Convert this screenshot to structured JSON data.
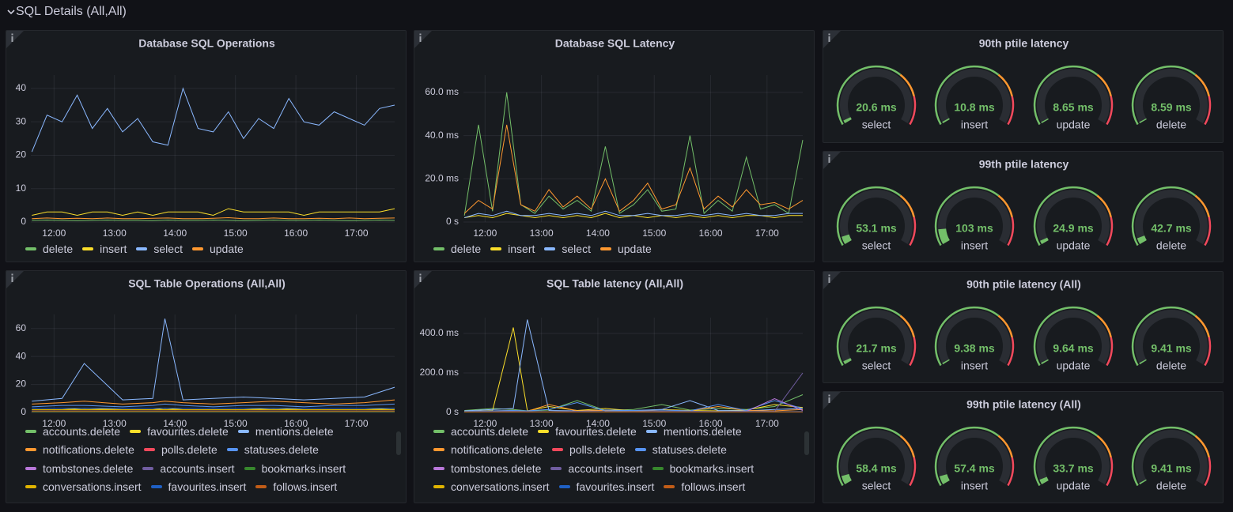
{
  "row": {
    "title": "SQL Details (All,All)"
  },
  "panels": [
    {
      "type": "line",
      "title": "Database SQL Operations",
      "x": [
        "11:38",
        "11:53",
        "12:08",
        "12:23",
        "12:38",
        "12:53",
        "13:08",
        "13:23",
        "13:38",
        "13:53",
        "14:08",
        "14:23",
        "14:38",
        "14:53",
        "15:08",
        "15:23",
        "15:38",
        "15:53",
        "16:08",
        "16:23",
        "16:38",
        "16:53",
        "17:08",
        "17:23",
        "17:38"
      ],
      "xlim": [
        "11:37",
        "17:38"
      ],
      "xticks": [
        "12:00",
        "13:00",
        "14:00",
        "15:00",
        "16:00",
        "17:00"
      ],
      "ylim": [
        0,
        44
      ],
      "yticks": [
        0,
        10,
        20,
        30,
        40
      ],
      "grid": true,
      "series": [
        {
          "name": "delete",
          "color": "#73bf69",
          "values": [
            0.5,
            0.6,
            0.5,
            0.4,
            0.5,
            0.6,
            0.5,
            0.5,
            0.4,
            0.6,
            0.5,
            0.5,
            0.6,
            0.5,
            0.4,
            0.5,
            0.6,
            0.5,
            0.5,
            0.6,
            0.5,
            0.4,
            0.5,
            0.6,
            0.5
          ]
        },
        {
          "name": "insert",
          "color": "#fade2a",
          "values": [
            2,
            3,
            3,
            2,
            3,
            3,
            2,
            3,
            2,
            3,
            3,
            3,
            2,
            4,
            3,
            3,
            3,
            3,
            2,
            3,
            3,
            3,
            3,
            3,
            4
          ]
        },
        {
          "name": "select",
          "color": "#8ab8ff",
          "values": [
            21,
            32,
            30,
            38,
            28,
            34,
            27,
            31,
            24,
            23,
            40,
            28,
            27,
            33,
            25,
            31,
            28,
            37,
            30,
            29,
            33,
            31,
            29,
            34,
            35
          ]
        },
        {
          "name": "update",
          "color": "#ff9830",
          "values": [
            1,
            1.2,
            1,
            1.1,
            1,
            1.2,
            1,
            1,
            1.1,
            1.2,
            1,
            1,
            1.1,
            1.3,
            1,
            1,
            1.2,
            1,
            1,
            1.1,
            1,
            1.2,
            1,
            1.1,
            1.2
          ]
        }
      ]
    },
    {
      "type": "line",
      "title": "Database SQL Latency",
      "x": [
        "11:38",
        "11:53",
        "12:08",
        "12:23",
        "12:38",
        "12:53",
        "13:08",
        "13:23",
        "13:38",
        "13:53",
        "14:08",
        "14:23",
        "14:38",
        "14:53",
        "15:08",
        "15:23",
        "15:38",
        "15:53",
        "16:08",
        "16:23",
        "16:38",
        "16:53",
        "17:08",
        "17:23",
        "17:38"
      ],
      "xlim": [
        "11:37",
        "17:38"
      ],
      "xticks": [
        "12:00",
        "13:00",
        "14:00",
        "15:00",
        "16:00",
        "17:00"
      ],
      "ylim": [
        0,
        68
      ],
      "yticks": [
        {
          "value": 0,
          "label": "0 s"
        },
        {
          "value": 20,
          "label": "20.0 ms"
        },
        {
          "value": 40,
          "label": "40.0 ms"
        },
        {
          "value": 60,
          "label": "60.0 ms"
        }
      ],
      "grid": true,
      "series": [
        {
          "name": "delete",
          "color": "#73bf69",
          "values": [
            3,
            45,
            5,
            60,
            8,
            4,
            12,
            6,
            10,
            5,
            35,
            4,
            8,
            15,
            5,
            6,
            40,
            4,
            10,
            5,
            30,
            6,
            8,
            4,
            38
          ]
        },
        {
          "name": "insert",
          "color": "#fade2a",
          "values": [
            2,
            3,
            2,
            4,
            3,
            2,
            3,
            2,
            3,
            2,
            4,
            2,
            3,
            2,
            3,
            2,
            3,
            2,
            3,
            2,
            3,
            3,
            2,
            3,
            3
          ]
        },
        {
          "name": "select",
          "color": "#8ab8ff",
          "values": [
            2,
            4,
            3,
            5,
            3,
            3,
            4,
            3,
            4,
            3,
            5,
            3,
            3,
            4,
            3,
            3,
            4,
            3,
            4,
            3,
            4,
            3,
            3,
            4,
            4
          ]
        },
        {
          "name": "update",
          "color": "#ff9830",
          "values": [
            4,
            10,
            6,
            45,
            8,
            5,
            15,
            7,
            12,
            6,
            20,
            5,
            10,
            18,
            6,
            8,
            25,
            6,
            12,
            7,
            15,
            8,
            9,
            6,
            10
          ]
        }
      ]
    },
    {
      "type": "gauge",
      "title": "90th ptile latency",
      "range": [
        0,
        1000
      ],
      "gauges": [
        {
          "name": "select",
          "value": 20.6,
          "value_label": "20.6 ms"
        },
        {
          "name": "insert",
          "value": 10.8,
          "value_label": "10.8 ms"
        },
        {
          "name": "update",
          "value": 8.65,
          "value_label": "8.65 ms"
        },
        {
          "name": "delete",
          "value": 8.59,
          "value_label": "8.59 ms"
        }
      ]
    },
    {
      "type": "gauge",
      "title": "99th ptile latency",
      "range": [
        0,
        1000
      ],
      "gauges": [
        {
          "name": "select",
          "value": 53.1,
          "value_label": "53.1 ms"
        },
        {
          "name": "insert",
          "value": 103,
          "value_label": "103 ms"
        },
        {
          "name": "update",
          "value": 24.9,
          "value_label": "24.9 ms"
        },
        {
          "name": "delete",
          "value": 42.7,
          "value_label": "42.7 ms"
        }
      ]
    },
    {
      "type": "line",
      "title": "SQL Table Operations (All,All)",
      "x": [
        "11:38",
        "12:08",
        "12:30",
        "13:08",
        "13:38",
        "13:50",
        "14:08",
        "14:38",
        "15:08",
        "15:38",
        "16:08",
        "16:38",
        "17:08",
        "17:38"
      ],
      "xlim": [
        "11:37",
        "17:38"
      ],
      "xticks": [
        "12:00",
        "13:00",
        "14:00",
        "15:00",
        "16:00",
        "17:00"
      ],
      "ylim": [
        0,
        70
      ],
      "yticks": [
        0,
        20,
        40,
        60
      ],
      "grid": true,
      "series": [
        {
          "name": "accounts.delete",
          "color": "#73bf69",
          "values": [
            1,
            1,
            1,
            1,
            1,
            1,
            1,
            1,
            1,
            1,
            1,
            1,
            1,
            1
          ]
        },
        {
          "name": "favourites.delete",
          "color": "#fade2a",
          "values": [
            2,
            2,
            3,
            2,
            2,
            3,
            2,
            2,
            2,
            3,
            2,
            2,
            2,
            3
          ]
        },
        {
          "name": "mentions.delete",
          "color": "#8ab8ff",
          "values": [
            8,
            10,
            35,
            9,
            10,
            67,
            9,
            10,
            11,
            10,
            9,
            10,
            11,
            18
          ]
        },
        {
          "name": "notifications.delete",
          "color": "#ff9830",
          "values": [
            6,
            7,
            8,
            6,
            7,
            8,
            7,
            6,
            7,
            8,
            7,
            6,
            7,
            9
          ]
        },
        {
          "name": "polls.delete",
          "color": "#f2495c",
          "values": [
            0.5,
            0.5,
            0.5,
            0.5,
            0.5,
            0.5,
            0.5,
            0.5,
            0.5,
            0.5,
            0.5,
            0.5,
            0.5,
            0.5
          ]
        },
        {
          "name": "statuses.delete",
          "color": "#5794f2",
          "values": [
            4,
            5,
            5,
            4,
            5,
            6,
            5,
            4,
            5,
            5,
            4,
            5,
            5,
            6
          ]
        },
        {
          "name": "tombstones.delete",
          "color": "#b877d9",
          "values": [
            1,
            1,
            1,
            1,
            1,
            1,
            1,
            1,
            1,
            1,
            1,
            1,
            1,
            1
          ]
        },
        {
          "name": "accounts.insert",
          "color": "#705da0",
          "values": [
            0.5,
            0.5,
            0.5,
            0.5,
            0.5,
            0.5,
            0.5,
            0.5,
            0.5,
            0.5,
            0.5,
            0.5,
            0.5,
            0.5
          ]
        },
        {
          "name": "bookmarks.insert",
          "color": "#37872d",
          "values": [
            0.5,
            0.5,
            0.5,
            0.5,
            0.5,
            0.5,
            0.5,
            0.5,
            0.5,
            0.5,
            0.5,
            0.5,
            0.5,
            0.5
          ]
        },
        {
          "name": "conversations.insert",
          "color": "#e0b400",
          "values": [
            2,
            2,
            2,
            2,
            2,
            2,
            2,
            2,
            2,
            2,
            2,
            2,
            2,
            2
          ]
        },
        {
          "name": "favourites.insert",
          "color": "#1f60c4",
          "values": [
            3,
            3,
            3,
            3,
            3,
            3,
            3,
            3,
            3,
            3,
            3,
            3,
            3,
            3
          ]
        },
        {
          "name": "follows.insert",
          "color": "#c15c17",
          "values": [
            1,
            1,
            1,
            1,
            1,
            1,
            1,
            1,
            1,
            1,
            1,
            1,
            1,
            1
          ]
        }
      ]
    },
    {
      "type": "line",
      "title": "SQL Table latency (All,All)",
      "x": [
        "11:38",
        "12:08",
        "12:30",
        "12:45",
        "13:08",
        "13:38",
        "14:08",
        "14:38",
        "15:08",
        "15:38",
        "16:08",
        "16:38",
        "17:08",
        "17:38"
      ],
      "xlim": [
        "11:37",
        "17:38"
      ],
      "xticks": [
        "12:00",
        "13:00",
        "14:00",
        "15:00",
        "16:00",
        "17:00"
      ],
      "ylim": [
        0,
        480
      ],
      "yticks": [
        {
          "value": 0,
          "label": "0 s"
        },
        {
          "value": 200,
          "label": "200.0 ms"
        },
        {
          "value": 400,
          "label": "400.0 ms"
        }
      ],
      "grid": true,
      "series": [
        {
          "name": "accounts.delete",
          "color": "#73bf69",
          "values": [
            10,
            20,
            15,
            8,
            12,
            60,
            10,
            15,
            40,
            12,
            20,
            15,
            30,
            90
          ]
        },
        {
          "name": "favourites.delete",
          "color": "#fade2a",
          "values": [
            5,
            10,
            430,
            8,
            30,
            10,
            20,
            8,
            15,
            10,
            8,
            12,
            40,
            25
          ]
        },
        {
          "name": "mentions.delete",
          "color": "#8ab8ff",
          "values": [
            8,
            15,
            20,
            470,
            10,
            8,
            12,
            10,
            15,
            60,
            10,
            8,
            15,
            20
          ]
        },
        {
          "name": "notifications.delete",
          "color": "#ff9830",
          "values": [
            5,
            8,
            10,
            6,
            40,
            8,
            10,
            6,
            12,
            8,
            30,
            10,
            8,
            15
          ]
        },
        {
          "name": "polls.delete",
          "color": "#f2495c",
          "values": [
            2,
            3,
            2,
            3,
            2,
            3,
            2,
            3,
            2,
            3,
            2,
            3,
            2,
            3
          ]
        },
        {
          "name": "statuses.delete",
          "color": "#5794f2",
          "values": [
            6,
            8,
            10,
            8,
            15,
            50,
            8,
            10,
            12,
            8,
            40,
            10,
            60,
            20
          ]
        },
        {
          "name": "tombstones.delete",
          "color": "#b877d9",
          "values": [
            3,
            4,
            5,
            3,
            4,
            5,
            3,
            4,
            5,
            3,
            4,
            5,
            70,
            10
          ]
        },
        {
          "name": "accounts.insert",
          "color": "#705da0",
          "values": [
            4,
            5,
            6,
            5,
            4,
            6,
            5,
            4,
            5,
            6,
            5,
            4,
            6,
            200
          ]
        },
        {
          "name": "bookmarks.insert",
          "color": "#37872d",
          "values": [
            2,
            3,
            2,
            3,
            2,
            3,
            2,
            3,
            2,
            3,
            2,
            3,
            2,
            3
          ]
        },
        {
          "name": "conversations.insert",
          "color": "#e0b400",
          "values": [
            3,
            4,
            3,
            4,
            3,
            4,
            3,
            4,
            3,
            4,
            3,
            4,
            3,
            4
          ]
        },
        {
          "name": "favourites.insert",
          "color": "#1f60c4",
          "values": [
            4,
            5,
            4,
            5,
            4,
            5,
            4,
            5,
            4,
            5,
            4,
            5,
            4,
            5
          ]
        },
        {
          "name": "follows.insert",
          "color": "#c15c17",
          "values": [
            3,
            3,
            3,
            3,
            3,
            3,
            3,
            3,
            3,
            3,
            3,
            3,
            3,
            3
          ]
        }
      ]
    },
    {
      "type": "gauge",
      "title": "90th ptile latency (All)",
      "range": [
        0,
        1000
      ],
      "gauges": [
        {
          "name": "select",
          "value": 21.7,
          "value_label": "21.7 ms"
        },
        {
          "name": "insert",
          "value": 9.38,
          "value_label": "9.38 ms"
        },
        {
          "name": "update",
          "value": 9.64,
          "value_label": "9.64 ms"
        },
        {
          "name": "delete",
          "value": 9.41,
          "value_label": "9.41 ms"
        }
      ]
    },
    {
      "type": "gauge",
      "title": "99th ptile latency (All)",
      "range": [
        0,
        1000
      ],
      "gauges": [
        {
          "name": "select",
          "value": 58.4,
          "value_label": "58.4 ms"
        },
        {
          "name": "insert",
          "value": 57.4,
          "value_label": "57.4 ms"
        },
        {
          "name": "update",
          "value": 33.7,
          "value_label": "33.7 ms"
        },
        {
          "name": "delete",
          "value": 9.41,
          "value_label": "9.41 ms"
        }
      ]
    }
  ]
}
